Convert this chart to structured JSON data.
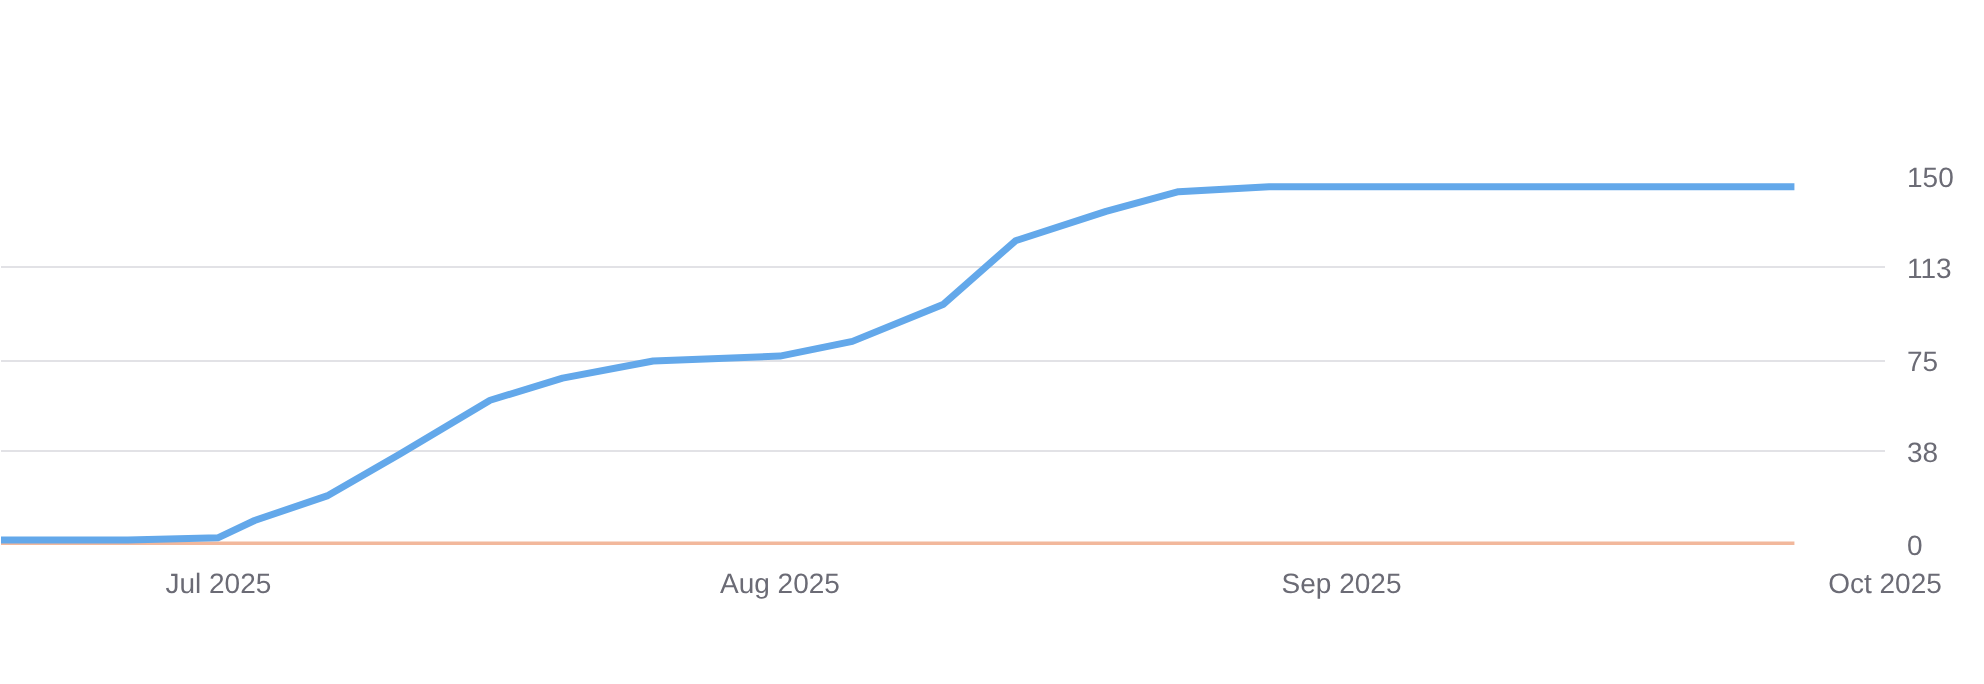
{
  "chart_data": {
    "type": "line",
    "xlim": [
      "2025-06-19",
      "2025-10-01"
    ],
    "xticks": [
      {
        "value": "2025-07-01",
        "label": "Jul 2025"
      },
      {
        "value": "2025-08-01",
        "label": "Aug 2025"
      },
      {
        "value": "2025-09-01",
        "label": "Sep 2025"
      },
      {
        "value": "2025-10-01",
        "label": "Oct 2025"
      }
    ],
    "ylim": [
      0,
      150
    ],
    "yticks": [
      0,
      38,
      75,
      113,
      150
    ],
    "grid": "y",
    "marker": "none",
    "line_style": "solid",
    "series": [
      {
        "color": "#f2b89c",
        "x": [
          "2025-06-19",
          "2025-09-26"
        ],
        "values": [
          0,
          0
        ]
      },
      {
        "color": "#63a8ea",
        "x": [
          "2025-06-19",
          "2025-06-26",
          "2025-07-01",
          "2025-07-03",
          "2025-07-07",
          "2025-07-11",
          "2025-07-16",
          "2025-07-20",
          "2025-07-25",
          "2025-08-01",
          "2025-08-05",
          "2025-08-10",
          "2025-08-14",
          "2025-08-19",
          "2025-08-23",
          "2025-08-28",
          "2025-09-26"
        ],
        "values": [
          2,
          2,
          3,
          10,
          20,
          37,
          59,
          68,
          75,
          77,
          83,
          98,
          124,
          136,
          144,
          146,
          146
        ]
      }
    ]
  }
}
